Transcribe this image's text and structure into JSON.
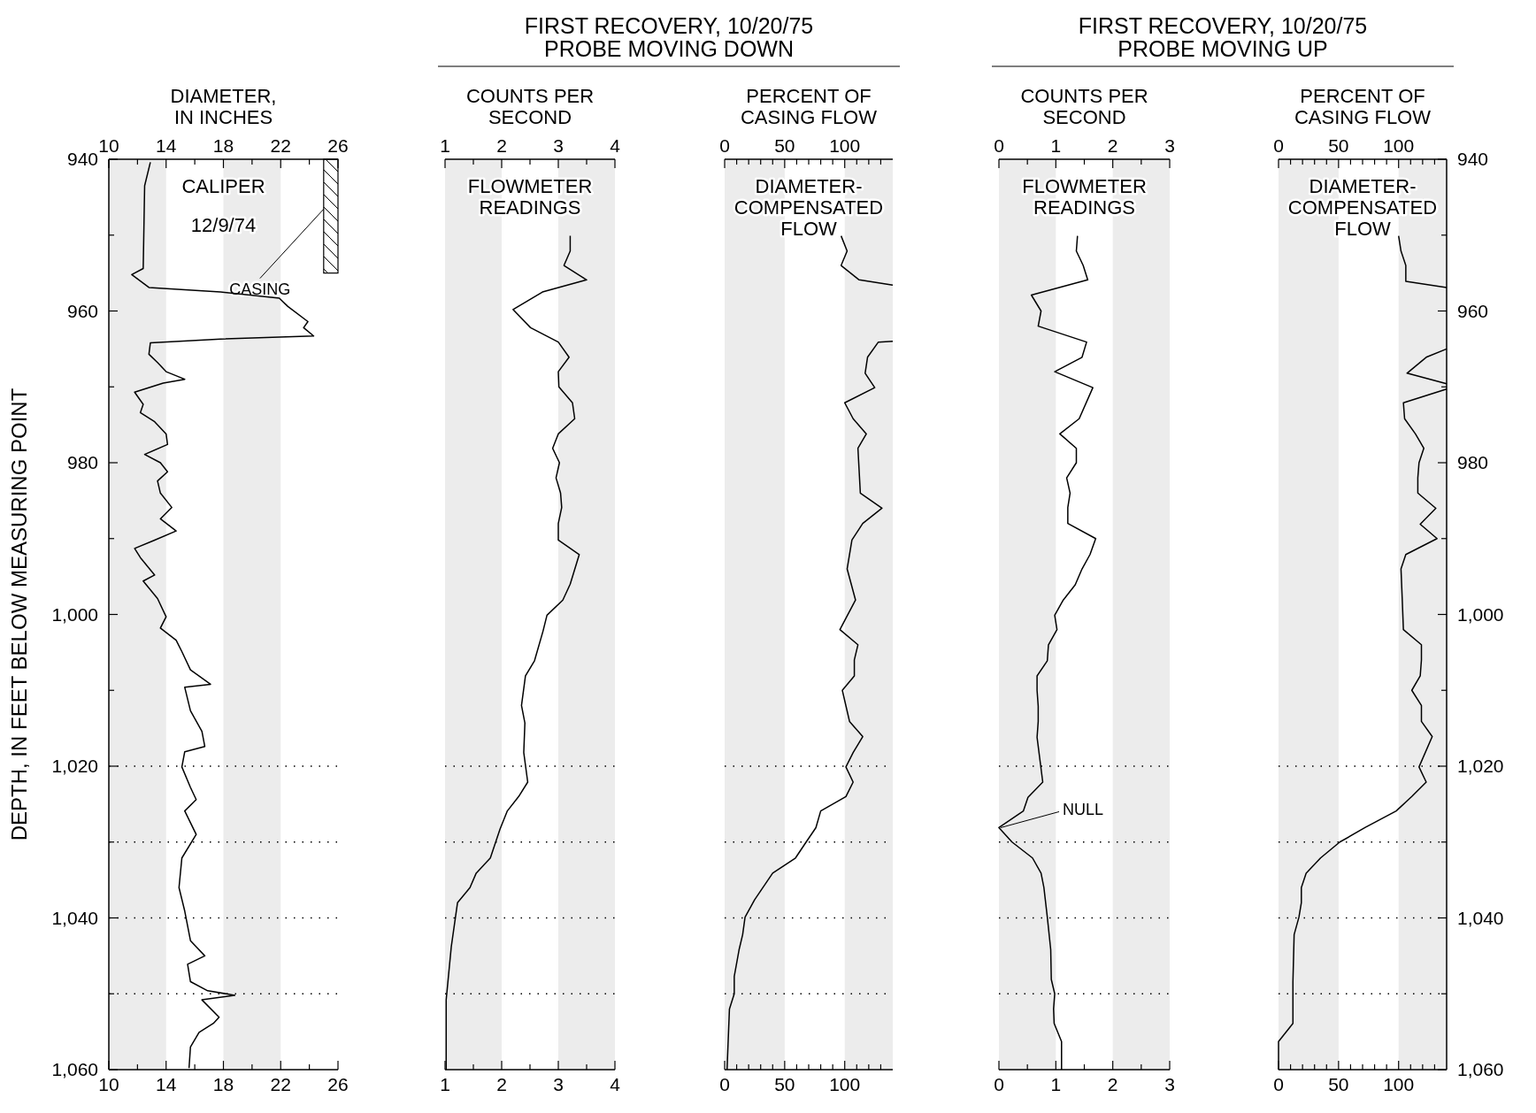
{
  "chart_data": [
    {
      "type": "line",
      "x2label": "DIAMETER,\nIN INCHES",
      "ylabel": "DEPTH, IN FEET BELOW MEASURING POINT",
      "annotations": [
        "CALIPER",
        "12/9/74"
      ],
      "xlim": [
        10,
        26
      ],
      "xticks": [
        10,
        {
          "value": 12,
          "label": null
        },
        14,
        {
          "value": 16,
          "label": null
        },
        18,
        {
          "value": 20,
          "label": null
        },
        22,
        {
          "value": 24,
          "label": null
        },
        26
      ],
      "x2lim": [
        10,
        26
      ],
      "x2ticks": [
        10,
        {
          "value": 12,
          "label": null
        },
        14,
        {
          "value": 16,
          "label": null
        },
        18,
        {
          "value": 20,
          "label": null
        },
        22,
        {
          "value": 24,
          "label": null
        },
        26
      ],
      "ylim": [
        1060,
        940
      ],
      "yticks": [
        940,
        {
          "value": 950,
          "label": null
        },
        960,
        {
          "value": 970,
          "label": null
        },
        980,
        {
          "value": 990,
          "label": null
        },
        {
          "value": 1000,
          "label": "1,000"
        },
        {
          "value": 1010,
          "label": null
        },
        {
          "value": 1020,
          "label": "1,020"
        },
        {
          "value": 1030,
          "label": null
        },
        {
          "value": 1040,
          "label": "1,040"
        },
        {
          "value": 1050,
          "label": null
        },
        {
          "value": 1060,
          "label": "1,060"
        }
      ],
      "bands": [
        {
          "axis": "x",
          "from": 10,
          "to": 14,
          "color": "#ececec"
        },
        {
          "axis": "x",
          "from": 18,
          "to": 22,
          "color": "#ececec"
        },
        {
          "axis": "y",
          "from": 940,
          "to": 955,
          "label": "CASING"
        }
      ],
      "ref_lines": [
        {
          "axis": "y",
          "value": 1020,
          "line_style": "dotted"
        },
        {
          "axis": "y",
          "value": 1030,
          "line_style": "dotted"
        },
        {
          "axis": "y",
          "value": 1040,
          "line_style": "dotted"
        },
        {
          "axis": "y",
          "value": 1050,
          "line_style": "dotted"
        }
      ],
      "series": [
        {
          "color": "#000000",
          "x": [
            12.9,
            12.5,
            12.4,
            11.6,
            12.8,
            17.8,
            21.9,
            22.5,
            23.9,
            23.6,
            24.3,
            17.8,
            12.9,
            12.8,
            13.4,
            14,
            15.3,
            13.8,
            11.8,
            12.4,
            12.2,
            13.2,
            14,
            14.1,
            12.5,
            13.6,
            14.1,
            13.4,
            13.6,
            14.4,
            13.6,
            14.7,
            13.2,
            11.8,
            12.2,
            13.2,
            12.4,
            13.4,
            14,
            13.6,
            14.7,
            15.1,
            15.7,
            17.1,
            15.3,
            15.7,
            16.5,
            16.7,
            15.3,
            15.1,
            15.7,
            16.1,
            15.3,
            16.1,
            15.1,
            14.9,
            15.3,
            15.7,
            16.7,
            15.5,
            15.7,
            16.9,
            18.8,
            16.5,
            17.7,
            17.3,
            16.3,
            15.7,
            15.6
          ],
          "values": [
            940.4,
            943.5,
            954.4,
            955.2,
            956.9,
            957.5,
            958.3,
            959.4,
            961.4,
            962.2,
            963.3,
            963.7,
            964.2,
            965.7,
            966.8,
            968,
            969,
            969.5,
            970.7,
            972.3,
            973.4,
            974.6,
            976.2,
            977.6,
            978.9,
            980,
            981.2,
            982.4,
            984,
            985.9,
            987.4,
            989,
            990.2,
            991.3,
            992.5,
            994.8,
            995.6,
            997.9,
            1000.3,
            1001.8,
            1003.4,
            1004.9,
            1007.3,
            1009.2,
            1009.6,
            1012.7,
            1015.4,
            1017.4,
            1018.1,
            1020.1,
            1022.8,
            1024.4,
            1025.9,
            1029,
            1032.1,
            1036,
            1039.1,
            1043,
            1045,
            1046.1,
            1048.4,
            1049.6,
            1050.2,
            1050.8,
            1053.1,
            1053.9,
            1055.1,
            1057,
            1059.8
          ]
        }
      ]
    },
    {
      "type": "line",
      "title": "FIRST RECOVERY, 10/20/75",
      "subtitle": "PROBE MOVING DOWN",
      "x2label": "COUNTS PER\nSECOND",
      "annotations": [
        "FLOWMETER\nREADINGS"
      ],
      "tick_labels": "x",
      "xlim": [
        1,
        4
      ],
      "xticks": [
        1,
        {
          "value": 1.5,
          "label": null
        },
        2,
        {
          "value": 2.5,
          "label": null
        },
        3,
        {
          "value": 3.5,
          "label": null
        },
        4
      ],
      "x2lim": [
        1,
        4
      ],
      "x2ticks": [
        1,
        {
          "value": 1.5,
          "label": null
        },
        2,
        {
          "value": 2.5,
          "label": null
        },
        3,
        {
          "value": 3.5,
          "label": null
        },
        4
      ],
      "ylim": [
        1060,
        940
      ],
      "bands": [
        {
          "axis": "x",
          "from": 1,
          "to": 2,
          "color": "#ececec"
        },
        {
          "axis": "x",
          "from": 3,
          "to": 4,
          "color": "#ececec"
        }
      ],
      "ref_lines": [
        {
          "axis": "y",
          "value": 1020,
          "line_style": "dotted"
        },
        {
          "axis": "y",
          "value": 1030,
          "line_style": "dotted"
        },
        {
          "axis": "y",
          "value": 1040,
          "line_style": "dotted"
        },
        {
          "axis": "y",
          "value": 1050,
          "line_style": "dotted"
        }
      ],
      "series": [
        {
          "color": "#000000",
          "x": [
            3.21,
            3.21,
            3.1,
            3.5,
            2.72,
            2.2,
            2.51,
            3.0,
            3.19,
            3.0,
            3.01,
            3.25,
            3.29,
            3.0,
            2.9,
            3.02,
            2.96,
            3.04,
            3.06,
            3.0,
            3.0,
            3.37,
            3.21,
            3.08,
            2.8,
            2.73,
            2.58,
            2.42,
            2.35,
            2.41,
            2.39,
            2.46,
            2.3,
            2.1,
            1.97,
            1.8,
            1.55,
            1.44,
            1.22,
            1.11,
            1.02,
            1.02
          ],
          "values": [
            950.1,
            952.1,
            954,
            955.9,
            957.5,
            959.8,
            962.2,
            964.1,
            966.1,
            968,
            970,
            972.1,
            974.2,
            976.2,
            978.1,
            980,
            982,
            984,
            985.9,
            988,
            990.2,
            992.1,
            996,
            998.1,
            1000.1,
            1002.2,
            1006.1,
            1008.1,
            1012,
            1014.3,
            1018.2,
            1022.1,
            1024,
            1025.9,
            1028.3,
            1032.1,
            1034.1,
            1036,
            1038,
            1043.8,
            1050.8,
            1060
          ]
        }
      ]
    },
    {
      "type": "line",
      "x2label": "PERCENT OF\nCASING FLOW",
      "annotations": [
        "DIAMETER-\nCOMPENSATED\nFLOW"
      ],
      "tick_labels": "x",
      "xlim": [
        0,
        140
      ],
      "xticks": [
        0,
        {
          "value": 10,
          "label": null
        },
        {
          "value": 20,
          "label": null
        },
        {
          "value": 30,
          "label": null
        },
        {
          "value": 40,
          "label": null
        },
        50,
        {
          "value": 60,
          "label": null
        },
        {
          "value": 70,
          "label": null
        },
        {
          "value": 80,
          "label": null
        },
        {
          "value": 90,
          "label": null
        },
        100,
        {
          "value": 110,
          "label": null
        },
        {
          "value": 120,
          "label": null
        },
        {
          "value": 130,
          "label": null
        }
      ],
      "x2lim": [
        0,
        140
      ],
      "x2ticks": [
        0,
        {
          "value": 10,
          "label": null
        },
        {
          "value": 20,
          "label": null
        },
        {
          "value": 30,
          "label": null
        },
        {
          "value": 40,
          "label": null
        },
        50,
        {
          "value": 60,
          "label": null
        },
        {
          "value": 70,
          "label": null
        },
        {
          "value": 80,
          "label": null
        },
        {
          "value": 90,
          "label": null
        },
        100,
        {
          "value": 110,
          "label": null
        },
        {
          "value": 120,
          "label": null
        },
        {
          "value": 130,
          "label": null
        }
      ],
      "ylim": [
        1060,
        940
      ],
      "bands": [
        {
          "axis": "x",
          "from": 0,
          "to": 50,
          "color": "#ececec"
        },
        {
          "axis": "x",
          "from": 100,
          "to": 140,
          "color": "#ececec"
        }
      ],
      "ref_lines": [
        {
          "axis": "y",
          "value": 1020,
          "line_style": "dotted"
        },
        {
          "axis": "y",
          "value": 1030,
          "line_style": "dotted"
        },
        {
          "axis": "y",
          "value": 1040,
          "line_style": "dotted"
        },
        {
          "axis": "y",
          "value": 1050,
          "line_style": "dotted"
        }
      ],
      "series": [
        {
          "color": "#000000",
          "x": [
            97,
            102,
            97,
            112,
            140,
            null,
            140,
            128,
            119,
            117,
            125,
            100,
            107,
            118,
            111,
            113,
            131,
            115,
            106,
            102,
            109,
            96,
            111,
            108,
            108,
            98,
            104,
            115,
            107,
            101,
            107,
            101,
            80,
            76,
            67,
            59,
            40,
            25,
            17,
            15,
            12,
            8,
            8,
            4,
            2
          ],
          "values": [
            950.1,
            952.1,
            954,
            955.9,
            956.6,
            null,
            964,
            964.1,
            966.1,
            968.2,
            970.1,
            972.1,
            974.2,
            976.2,
            978.1,
            984,
            986,
            988,
            990.2,
            994,
            998.1,
            1002,
            1004,
            1006,
            1008.1,
            1010,
            1014.1,
            1016.1,
            1018.2,
            1020.1,
            1022.1,
            1024,
            1025.9,
            1028.1,
            1030.2,
            1032.1,
            1034.1,
            1037.6,
            1039.9,
            1042.2,
            1044.2,
            1047.7,
            1050,
            1052,
            1060
          ]
        }
      ]
    },
    {
      "type": "line",
      "title": "FIRST RECOVERY, 10/20/75",
      "subtitle": "PROBE MOVING UP",
      "x2label": "COUNTS PER\nSECOND",
      "annotations": [
        "FLOWMETER\nREADINGS",
        {
          "text": "NULL",
          "x": 0,
          "y": 1028.1
        }
      ],
      "tick_labels": "x",
      "xlim": [
        0,
        3
      ],
      "xticks": [
        0,
        {
          "value": 0.5,
          "label": null
        },
        1,
        {
          "value": 1.5,
          "label": null
        },
        2,
        {
          "value": 2.5,
          "label": null
        },
        3
      ],
      "x2lim": [
        0,
        3
      ],
      "x2ticks": [
        0,
        {
          "value": 0.5,
          "label": null
        },
        1,
        {
          "value": 1.5,
          "label": null
        },
        2,
        {
          "value": 2.5,
          "label": null
        },
        3
      ],
      "ylim": [
        1060,
        940
      ],
      "bands": [
        {
          "axis": "x",
          "from": 0,
          "to": 1,
          "color": "#ececec"
        },
        {
          "axis": "x",
          "from": 2,
          "to": 3,
          "color": "#ececec"
        }
      ],
      "ref_lines": [
        {
          "axis": "y",
          "value": 1020,
          "line_style": "dotted"
        },
        {
          "axis": "y",
          "value": 1030,
          "line_style": "dotted"
        },
        {
          "axis": "y",
          "value": 1040,
          "line_style": "dotted"
        },
        {
          "axis": "y",
          "value": 1050,
          "line_style": "dotted"
        }
      ],
      "series": [
        {
          "color": "#000000",
          "x": [
            1.38,
            1.36,
            1.48,
            1.56,
            0.57,
            0.74,
            0.69,
            1.54,
            1.46,
            0.98,
            1.65,
            1.41,
            1.07,
            1.36,
            1.36,
            1.19,
            1.25,
            1.21,
            1.21,
            1.7,
            1.6,
            1.46,
            1.34,
            1.13,
            0.98,
            1.02,
            0.87,
            0.85,
            0.67,
            0.67,
            0.69,
            0.69,
            0.67,
            0.77,
            0.51,
            0.43,
            0,
            0.23,
            0.59,
            0.74,
            0.79,
            0.85,
            0.91,
            0.92,
            0.98,
            0.96,
            0.97,
            1.1,
            1.1
          ],
          "values": [
            950.1,
            952.1,
            954,
            955.9,
            957.9,
            960,
            962,
            964.1,
            966.1,
            968,
            970.1,
            974.2,
            976.2,
            978.1,
            980,
            982,
            984,
            985.9,
            988,
            990,
            992.1,
            994,
            996.1,
            998.1,
            1000.1,
            1002,
            1004,
            1006.1,
            1008.1,
            1010,
            1012.1,
            1014.1,
            1016.2,
            1022.1,
            1024.1,
            1025.9,
            1028.1,
            1030,
            1032.1,
            1034.1,
            1036,
            1039.9,
            1044.2,
            1048.1,
            1050,
            1052,
            1053.9,
            1056.3,
            1060
          ]
        }
      ]
    },
    {
      "type": "line",
      "x2label": "PERCENT OF\nCASING FLOW",
      "annotations": [
        "DIAMETER-\nCOMPENSATED\nFLOW"
      ],
      "xlim": [
        0,
        140
      ],
      "xticks": [
        0,
        {
          "value": 10,
          "label": null
        },
        {
          "value": 20,
          "label": null
        },
        {
          "value": 30,
          "label": null
        },
        {
          "value": 40,
          "label": null
        },
        50,
        {
          "value": 60,
          "label": null
        },
        {
          "value": 70,
          "label": null
        },
        {
          "value": 80,
          "label": null
        },
        {
          "value": 90,
          "label": null
        },
        100,
        {
          "value": 110,
          "label": null
        },
        {
          "value": 120,
          "label": null
        },
        {
          "value": 130,
          "label": null
        }
      ],
      "x2lim": [
        0,
        140
      ],
      "x2ticks": [
        0,
        {
          "value": 10,
          "label": null
        },
        {
          "value": 20,
          "label": null
        },
        {
          "value": 30,
          "label": null
        },
        {
          "value": 40,
          "label": null
        },
        50,
        {
          "value": 60,
          "label": null
        },
        {
          "value": 70,
          "label": null
        },
        {
          "value": 80,
          "label": null
        },
        {
          "value": 90,
          "label": null
        },
        100,
        {
          "value": 110,
          "label": null
        },
        {
          "value": 120,
          "label": null
        },
        {
          "value": 130,
          "label": null
        }
      ],
      "y2lim": [
        1060,
        940
      ],
      "y2ticks": [
        940,
        {
          "value": 950,
          "label": null
        },
        960,
        {
          "value": 970,
          "label": null
        },
        980,
        {
          "value": 990,
          "label": null
        },
        {
          "value": 1000,
          "label": "1,000"
        },
        {
          "value": 1010,
          "label": null
        },
        {
          "value": 1020,
          "label": "1,020"
        },
        {
          "value": 1030,
          "label": null
        },
        {
          "value": 1040,
          "label": "1,040"
        },
        {
          "value": 1050,
          "label": null
        },
        {
          "value": 1060,
          "label": "1,060"
        }
      ],
      "bands": [
        {
          "axis": "x",
          "from": 0,
          "to": 50,
          "color": "#ececec"
        },
        {
          "axis": "x",
          "from": 100,
          "to": 140,
          "color": "#ececec"
        }
      ],
      "ref_lines": [
        {
          "axis": "y2",
          "value": 1020,
          "line_style": "dotted"
        },
        {
          "axis": "y2",
          "value": 1030,
          "line_style": "dotted"
        },
        {
          "axis": "y2",
          "value": 1040,
          "line_style": "dotted"
        },
        {
          "axis": "y2",
          "value": 1050,
          "line_style": "dotted"
        }
      ],
      "series": [
        {
          "color": "#000000",
          "axis": "y2",
          "x": [
            100,
            102,
            106,
            106,
            140,
            null,
            140,
            123,
            107,
            140,
            null,
            140,
            104,
            105,
            114,
            121,
            117,
            116,
            116,
            131,
            118,
            132,
            106,
            102,
            103,
            104,
            119,
            119,
            118,
            111,
            119,
            119,
            128,
            117,
            123,
            111,
            98,
            72,
            51,
            35,
            23,
            19,
            19,
            17,
            13,
            12,
            12,
            0,
            0
          ],
          "values": [
            950.1,
            952.1,
            954,
            956.1,
            956.9,
            null,
            965,
            966.1,
            968.2,
            969.6,
            null,
            970.3,
            972.1,
            974.2,
            976.2,
            978.1,
            980,
            982,
            984,
            986,
            988.1,
            990,
            992.1,
            994,
            997.9,
            1002,
            1004,
            1006,
            1008.1,
            1010,
            1012,
            1014.1,
            1016.1,
            1020.1,
            1022.1,
            1024,
            1025.9,
            1028.1,
            1030,
            1032.1,
            1034.1,
            1036,
            1038,
            1039.9,
            1042.2,
            1048.4,
            1053.9,
            1056.3,
            1060
          ]
        }
      ]
    }
  ]
}
